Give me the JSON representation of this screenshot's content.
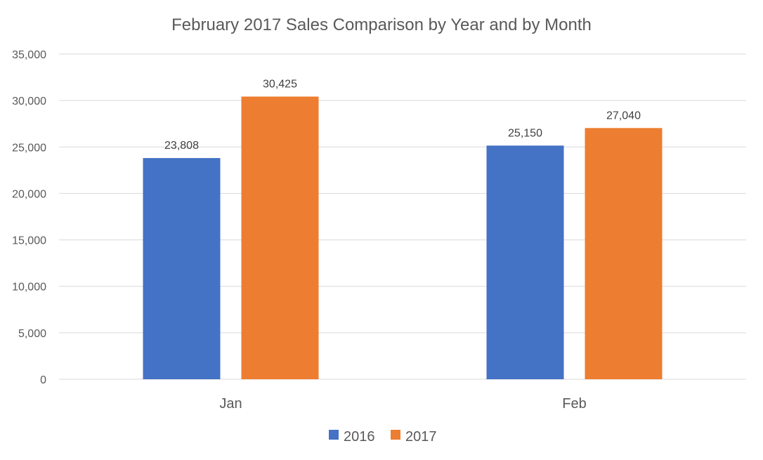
{
  "chart_data": {
    "type": "bar",
    "title": "February 2017 Sales Comparison by Year and by Month",
    "xlabel": "",
    "ylabel": "",
    "categories": [
      "Jan",
      "Feb"
    ],
    "series": [
      {
        "name": "2016",
        "values": [
          23808,
          25150
        ],
        "labels": [
          "23,808",
          "25,150"
        ],
        "color": "#4472c4"
      },
      {
        "name": "2017",
        "values": [
          30425,
          27040
        ],
        "labels": [
          "30,425",
          "27,040"
        ],
        "color": "#ed7d31"
      }
    ],
    "ylim": [
      0,
      35000
    ],
    "yticks": [
      0,
      5000,
      10000,
      15000,
      20000,
      25000,
      30000,
      35000
    ],
    "ytick_labels": [
      "0",
      "5,000",
      "10,000",
      "15,000",
      "20,000",
      "25,000",
      "30,000",
      "35,000"
    ],
    "grid": true,
    "legend_position": "bottom",
    "gridline_color": "#d9d9d9",
    "text_color": "#595959"
  }
}
